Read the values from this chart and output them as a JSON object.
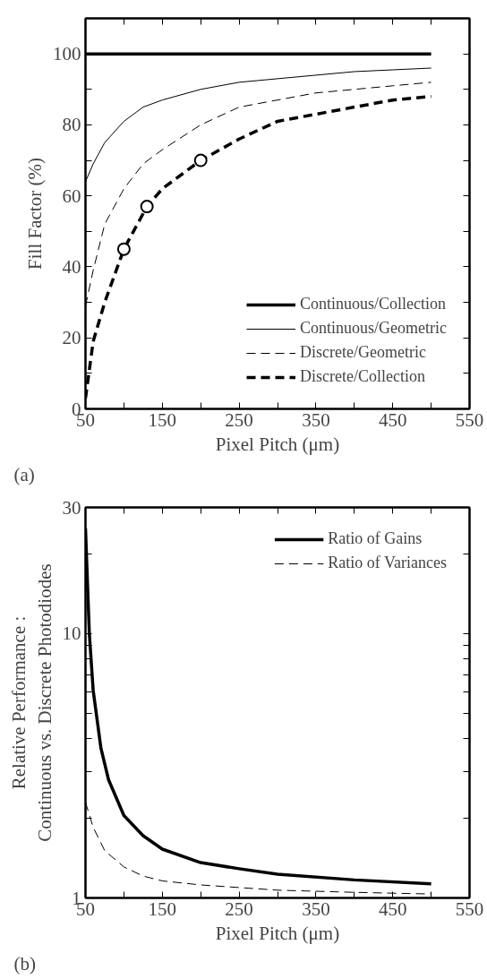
{
  "chart_data": [
    {
      "type": "line",
      "xlabel": "Pixel Pitch (μm)",
      "ylabel": "Fill Factor (%)",
      "annotations": [
        "(a)"
      ],
      "xlim": [
        50,
        550
      ],
      "ylim": [
        0,
        110
      ],
      "xticks": [
        50,
        {
          "value": 100,
          "label": null
        },
        150,
        {
          "value": 200,
          "label": null
        },
        250,
        {
          "value": 300,
          "label": null
        },
        350,
        {
          "value": 400,
          "label": null
        },
        450,
        {
          "value": 500,
          "label": null
        },
        550
      ],
      "yticks": [
        0,
        {
          "value": 10,
          "label": null
        },
        20,
        {
          "value": 30,
          "label": null
        },
        40,
        {
          "value": 50,
          "label": null
        },
        60,
        {
          "value": 70,
          "label": null
        },
        80,
        {
          "value": 90,
          "label": null
        },
        100
      ],
      "grid": false,
      "legend": "bottom right",
      "series": [
        {
          "name": "Continuous/Collection",
          "color": "#000000",
          "line_style": "solid",
          "x": [
            50,
            500
          ],
          "values": [
            100,
            100
          ]
        },
        {
          "name": "Continuous/Geometric",
          "color": "#000000",
          "line_style": "solid",
          "x": [
            50,
            60,
            75,
            100,
            125,
            150,
            200,
            250,
            300,
            350,
            400,
            450,
            500
          ],
          "values": [
            64,
            69,
            75,
            81,
            85,
            87,
            90,
            92,
            93,
            94,
            95,
            95.5,
            96
          ]
        },
        {
          "name": "Discrete/Geometric",
          "color": "#000000",
          "line_style": "dashed",
          "x": [
            50,
            60,
            75,
            100,
            125,
            150,
            200,
            250,
            300,
            350,
            400,
            450,
            500
          ],
          "values": [
            29,
            39,
            52,
            62,
            69,
            73,
            80,
            85,
            87,
            89,
            90,
            91,
            92
          ]
        },
        {
          "name": "Discrete/Collection",
          "color": "#000000",
          "line_style": "dashed",
          "x": [
            50,
            60,
            75,
            100,
            130,
            150,
            200,
            250,
            300,
            350,
            400,
            450,
            500
          ],
          "values": [
            3,
            19,
            30,
            45,
            57,
            62,
            70,
            76,
            81,
            83,
            85,
            87,
            88
          ]
        },
        {
          "type": "scatter",
          "marker": "circle",
          "color": "#000000",
          "x": [
            100,
            130,
            200
          ],
          "values": [
            45,
            57,
            70
          ]
        }
      ]
    },
    {
      "type": "line",
      "xlabel": "Pixel Pitch (μm)",
      "ylabel": "Relative Performance :\nContinuous vs. Discrete Photodiodes",
      "annotations": [
        "(b)"
      ],
      "log": "y",
      "xlim": [
        50,
        550
      ],
      "ylim": [
        1,
        30
      ],
      "xticks": [
        50,
        {
          "value": 100,
          "label": null
        },
        150,
        {
          "value": 200,
          "label": null
        },
        250,
        {
          "value": 300,
          "label": null
        },
        350,
        {
          "value": 400,
          "label": null
        },
        450,
        {
          "value": 500,
          "label": null
        },
        550
      ],
      "yticks": [
        1,
        {
          "value": 2,
          "label": null
        },
        {
          "value": 3,
          "label": null
        },
        {
          "value": 4,
          "label": null
        },
        {
          "value": 5,
          "label": null
        },
        {
          "value": 6,
          "label": null
        },
        {
          "value": 7,
          "label": null
        },
        {
          "value": 8,
          "label": null
        },
        {
          "value": 9,
          "label": null
        },
        10,
        {
          "value": 20,
          "label": null
        },
        30
      ],
      "grid": false,
      "legend": "top right",
      "series": [
        {
          "name": "Ratio of Gains",
          "color": "#000000",
          "line_style": "solid",
          "x": [
            50,
            55,
            60,
            70,
            80,
            100,
            125,
            150,
            200,
            250,
            300,
            400,
            500
          ],
          "values": [
            25,
            10,
            6.1,
            3.7,
            2.8,
            2.05,
            1.72,
            1.53,
            1.36,
            1.29,
            1.23,
            1.17,
            1.13
          ]
        },
        {
          "name": "Ratio of Variances",
          "color": "#000000",
          "line_style": "dashed",
          "x": [
            50,
            60,
            75,
            100,
            125,
            150,
            200,
            300,
            400,
            500
          ],
          "values": [
            2.3,
            1.85,
            1.51,
            1.31,
            1.21,
            1.16,
            1.12,
            1.07,
            1.05,
            1.035
          ]
        }
      ]
    }
  ]
}
